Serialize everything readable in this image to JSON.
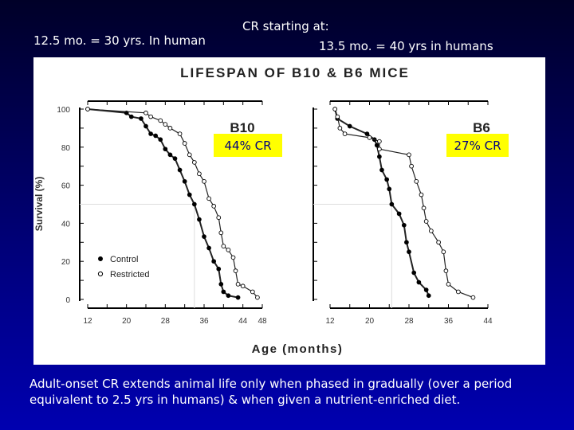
{
  "header": {
    "left_note": "12.5 mo. = 30 yrs. In human",
    "cr_start_label": "CR starting at:",
    "right_note": "13.5 mo. = 40 yrs in humans"
  },
  "caption": "Adult-onset CR extends animal life only when phased in gradually (over a period equivalent to 2.5 yrs in humans) & when given a nutrient-enriched diet.",
  "colors": {
    "highlight": "#ffff00",
    "highlight_text": "#000080",
    "background": "#00008a"
  },
  "chart_data": {
    "title": "LIFESPAN OF B10 & B6 MICE",
    "xlabel": "Age (months)",
    "ylabel": "Survival (%)",
    "legend": {
      "placement": "bottom-left",
      "entries": [
        "Control",
        "Restricted"
      ]
    },
    "panels": [
      {
        "type": "line",
        "label": "B10",
        "annotation": "44% CR",
        "xlim": [
          12,
          48
        ],
        "ylim": [
          0,
          100
        ],
        "xticks": [
          12,
          20,
          28,
          36,
          44,
          48
        ],
        "yticks": [
          0,
          20,
          40,
          60,
          80,
          100
        ],
        "series": [
          {
            "name": "Control",
            "marker": "filled",
            "x": [
              12,
              20,
              21,
              23,
              24,
              25,
              26,
              27,
              28,
              29,
              30,
              31,
              32,
              33,
              34,
              35,
              36,
              37,
              38,
              39,
              39.5,
              40,
              41,
              43
            ],
            "y": [
              100,
              98,
              96,
              95,
              91,
              87,
              86,
              84,
              79,
              76,
              74,
              68,
              62,
              55,
              50,
              42,
              33,
              27,
              20,
              16,
              8,
              4,
              2,
              1
            ]
          },
          {
            "name": "Restricted",
            "marker": "open",
            "x": [
              12,
              24,
              25,
              27,
              28,
              29,
              31,
              32,
              33,
              34,
              35,
              36,
              37,
              38,
              39,
              39.5,
              40,
              41,
              42,
              42.5,
              43,
              44,
              46,
              47
            ],
            "y": [
              100,
              98,
              96,
              94,
              92,
              90,
              87,
              82,
              76,
              72,
              66,
              62,
              53,
              49,
              43,
              35,
              28,
              26,
              22,
              15,
              8,
              7,
              4,
              1
            ]
          }
        ]
      },
      {
        "type": "line",
        "label": "B6",
        "annotation": "27% CR",
        "xlim": [
          12,
          44
        ],
        "ylim": [
          0,
          100
        ],
        "xticks": [
          12,
          20,
          28,
          36,
          44
        ],
        "yticks": [],
        "series": [
          {
            "name": "Control",
            "marker": "filled",
            "x": [
              13,
              13.5,
              16,
              19.5,
              21,
              21.5,
              22,
              22.5,
              23.5,
              24,
              24.5,
              26,
              27,
              27.5,
              28,
              29,
              30,
              31.5,
              32
            ],
            "y": [
              100,
              95,
              91,
              87,
              84,
              81,
              75,
              68,
              63,
              58,
              50,
              45,
              39,
              30,
              25,
              14,
              9,
              5,
              2
            ]
          },
          {
            "name": "Restricted",
            "marker": "open",
            "x": [
              13,
              13.5,
              14,
              15,
              20,
              22,
              22,
              28,
              28.5,
              29.5,
              30.5,
              31,
              31.5,
              32.5,
              34,
              35,
              35.5,
              36,
              38,
              41
            ],
            "y": [
              100,
              96,
              90,
              87,
              85,
              83,
              79,
              76,
              70,
              62,
              55,
              48,
              41,
              36,
              30,
              25,
              15,
              8,
              4,
              1
            ]
          }
        ]
      }
    ]
  }
}
